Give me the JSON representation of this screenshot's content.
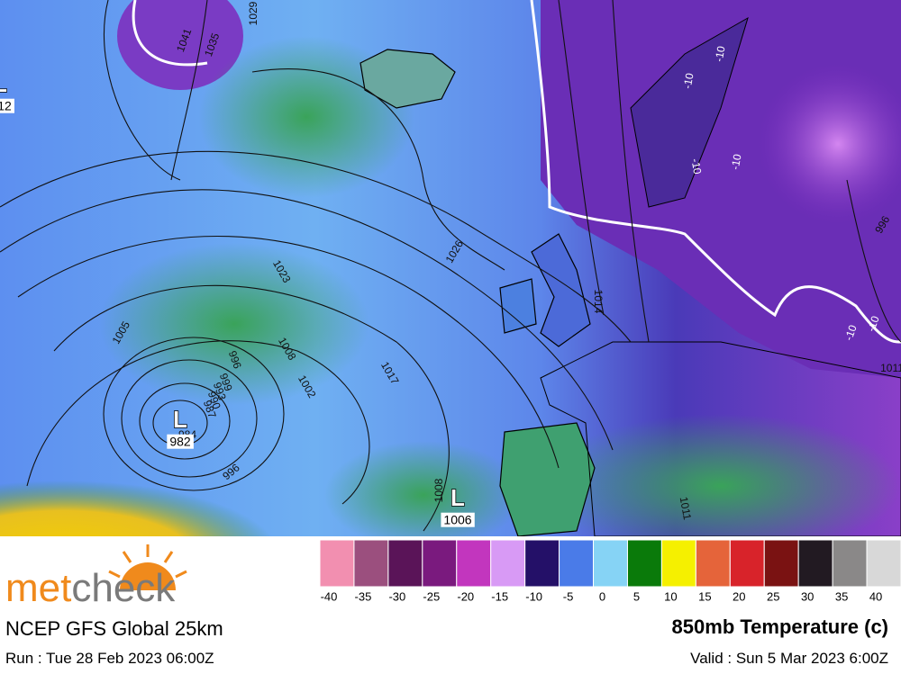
{
  "header": {
    "brand_a": "met",
    "brand_b": "check",
    "model": "NCEP GFS Global 25km",
    "run": "Run : Tue 28 Feb 2023 06:00Z",
    "product": "850mb Temperature (c)",
    "valid": "Valid : Sun 5 Mar 2023 6:00Z"
  },
  "legend": {
    "colors": [
      "#f28fb0",
      "#9b4f7e",
      "#5a1458",
      "#7a1a7e",
      "#c236be",
      "#d89af5",
      "#241068",
      "#4a7be8",
      "#86d3f5",
      "#0a7a0a",
      "#f5f000",
      "#e5643a",
      "#d8232a",
      "#7a1212",
      "#221a22",
      "#8a8888",
      "#d8d8d8"
    ],
    "labels": [
      -40,
      -35,
      -30,
      -25,
      -20,
      -15,
      -10,
      -5,
      0,
      5,
      10,
      15,
      20,
      25,
      30,
      35,
      40
    ]
  },
  "map": {
    "isobar_labels": [
      "1005",
      "1023",
      "1026",
      "1017",
      "1008",
      "1002",
      "996",
      "999",
      "993",
      "990",
      "987",
      "984",
      "996",
      "1008",
      "1011",
      "1014",
      "1011",
      "996",
      "1041",
      "1035",
      "1029"
    ],
    "temperature_labels": [
      "-10",
      "-10",
      "-10",
      "-10",
      "-10",
      "-10"
    ],
    "lows": [
      {
        "symbol": "L",
        "pressure": "982"
      },
      {
        "symbol": "L",
        "pressure": "1006"
      },
      {
        "symbol": "L",
        "pressure": "12"
      }
    ]
  }
}
